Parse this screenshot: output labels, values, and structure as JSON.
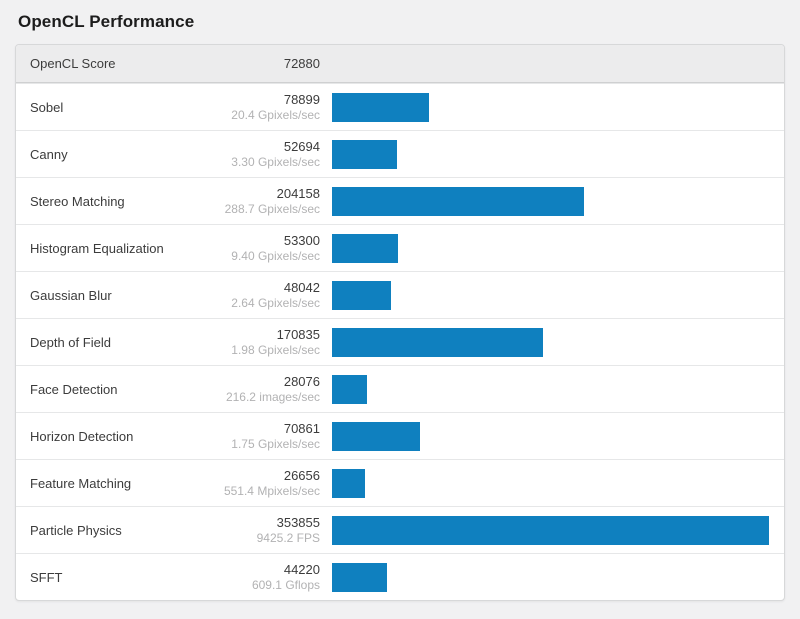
{
  "page": {
    "title": "OpenCL Performance"
  },
  "chart_data": {
    "type": "bar",
    "title": "OpenCL Performance",
    "header": {
      "label": "OpenCL Score",
      "value": "72880"
    },
    "bar_color": "#0f80bf",
    "xmax": 353855,
    "orientation": "horizontal",
    "grid": false,
    "legend": "none",
    "categories": [
      "Sobel",
      "Canny",
      "Stereo Matching",
      "Histogram Equalization",
      "Gaussian Blur",
      "Depth of Field",
      "Face Detection",
      "Horizon Detection",
      "Feature Matching",
      "Particle Physics",
      "SFFT"
    ],
    "values": [
      78899,
      52694,
      204158,
      53300,
      48042,
      170835,
      28076,
      70861,
      26656,
      353855,
      44220
    ],
    "rates": [
      "20.4 Gpixels/sec",
      "3.30 Gpixels/sec",
      "288.7 Gpixels/sec",
      "9.40 Gpixels/sec",
      "2.64 Gpixels/sec",
      "1.98 Gpixels/sec",
      "216.2 images/sec",
      "1.75 Gpixels/sec",
      "551.4 Mpixels/sec",
      "9425.2 FPS",
      "609.1 Gflops"
    ]
  }
}
